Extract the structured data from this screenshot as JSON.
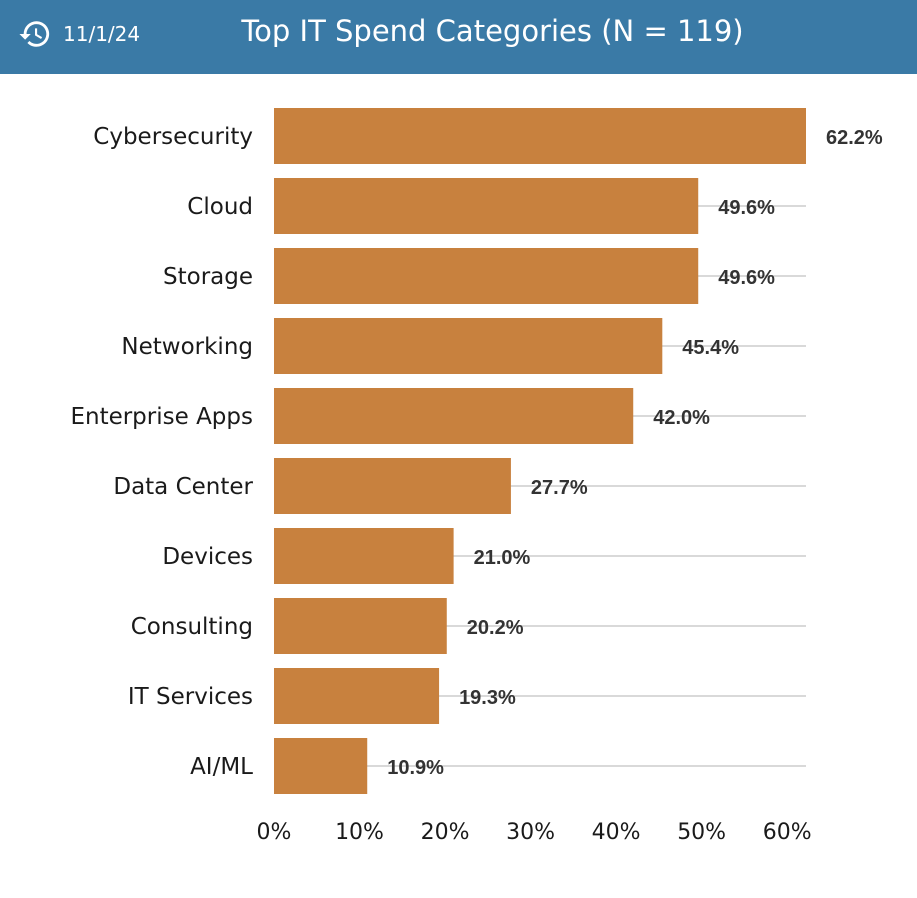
{
  "header": {
    "icon": "history-icon",
    "date": "11/1/24",
    "title": "Top IT Spend Categories (N = 119)",
    "background": "#3a7aa6"
  },
  "chart_data": {
    "type": "bar",
    "orientation": "horizontal",
    "title": "Top IT Spend Categories (N = 119)",
    "categories": [
      "Cybersecurity",
      "Cloud",
      "Storage",
      "Networking",
      "Enterprise Apps",
      "Data Center",
      "Devices",
      "Consulting",
      "IT Services",
      "AI/ML"
    ],
    "values": [
      62.2,
      49.6,
      49.6,
      45.4,
      42.0,
      27.7,
      21.0,
      20.2,
      19.3,
      10.9
    ],
    "value_labels": [
      "62.2%",
      "49.6%",
      "49.6%",
      "45.4%",
      "42.0%",
      "27.7%",
      "21.0%",
      "20.2%",
      "19.3%",
      "10.9%"
    ],
    "xlim": [
      0,
      62.2
    ],
    "x_ticks": [
      0,
      10,
      20,
      30,
      40,
      50,
      60
    ],
    "x_tick_labels": [
      "0%",
      "10%",
      "20%",
      "30%",
      "40%",
      "50%",
      "60%"
    ],
    "xlabel": "",
    "ylabel": "",
    "grid": true,
    "bar_color": "#c8813e",
    "grid_color": "#d9d9d9"
  }
}
